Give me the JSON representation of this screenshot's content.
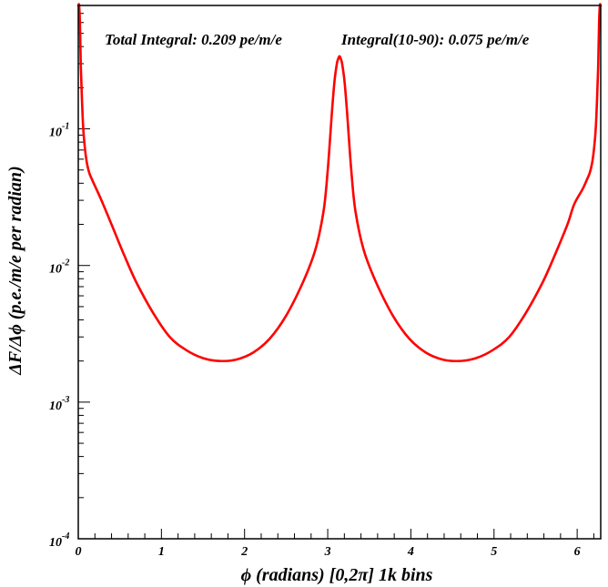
{
  "chart_data": {
    "type": "line",
    "title": "",
    "xlabel": "ϕ (radians) [0,2π] 1k bins",
    "ylabel": "ΔF/Δϕ (p.e./m/e per radian)",
    "yscale": "log",
    "xlim": [
      0,
      6.2832
    ],
    "ylim": [
      0.0001,
      0.8
    ],
    "grid": false,
    "legend": "none",
    "annotations": [
      "Total Integral: 0.209 pe/m/e",
      "Integral(10-90): 0.075 pe/m/e"
    ],
    "x_ticks": [
      {
        "value": 0,
        "label": "0"
      },
      {
        "value": 1,
        "label": "1"
      },
      {
        "value": 2,
        "label": "2"
      },
      {
        "value": 3,
        "label": "3"
      },
      {
        "value": 4,
        "label": "4"
      },
      {
        "value": 5,
        "label": "5"
      },
      {
        "value": 6,
        "label": "6"
      }
    ],
    "y_ticks": [
      {
        "value": 0.0001,
        "base": "10",
        "exp": "-4"
      },
      {
        "value": 0.001,
        "base": "10",
        "exp": "-3"
      },
      {
        "value": 0.01,
        "base": "10",
        "exp": "-2"
      },
      {
        "value": 0.1,
        "base": "10",
        "exp": "-1"
      }
    ],
    "series": [
      {
        "color": "#ff0000",
        "x": [
          0.0,
          0.01,
          0.02,
          0.03,
          0.045,
          0.06,
          0.08,
          0.1,
          0.13,
          0.17,
          0.22,
          0.3,
          0.4,
          0.55,
          0.7,
          0.9,
          1.1,
          1.3,
          1.5,
          1.7,
          1.9,
          2.1,
          2.3,
          2.5,
          2.7,
          2.85,
          2.95,
          3.0,
          3.05,
          3.08,
          3.11,
          3.13,
          3.1416,
          3.1532,
          3.1732,
          3.2032,
          3.2332,
          3.2832,
          3.3332,
          3.4332,
          3.5832,
          3.7832,
          3.9832,
          4.1832,
          4.3832,
          4.5832,
          4.7832,
          4.9832,
          5.1832,
          5.3832,
          5.5832,
          5.7332,
          5.8832,
          5.9632,
          6.0632,
          6.1132,
          6.1532,
          6.1832,
          6.2032,
          6.2232,
          6.2382,
          6.2532,
          6.2632,
          6.2732,
          6.2832
        ],
        "y": [
          0.8,
          0.8,
          0.6,
          0.3,
          0.16,
          0.1,
          0.072,
          0.058,
          0.048,
          0.042,
          0.036,
          0.028,
          0.02,
          0.012,
          0.0075,
          0.0045,
          0.003,
          0.0024,
          0.0021,
          0.002,
          0.00205,
          0.0023,
          0.0029,
          0.0043,
          0.0075,
          0.013,
          0.025,
          0.05,
          0.13,
          0.22,
          0.3,
          0.33,
          0.34,
          0.33,
          0.3,
          0.22,
          0.13,
          0.05,
          0.025,
          0.013,
          0.0075,
          0.0043,
          0.0029,
          0.0023,
          0.00205,
          0.002,
          0.0021,
          0.0024,
          0.003,
          0.0045,
          0.0075,
          0.012,
          0.02,
          0.028,
          0.036,
          0.042,
          0.048,
          0.058,
          0.072,
          0.1,
          0.16,
          0.3,
          0.6,
          0.8,
          0.8
        ]
      }
    ]
  }
}
